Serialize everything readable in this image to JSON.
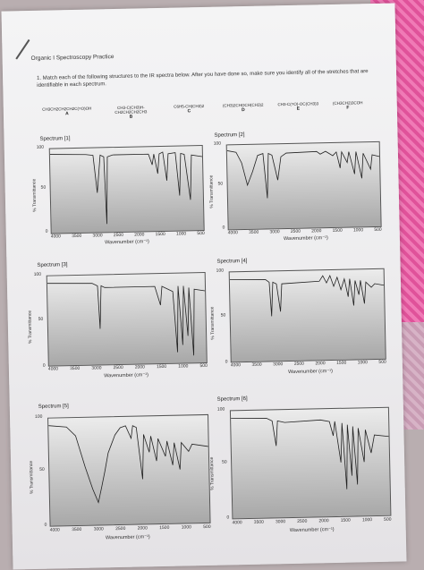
{
  "header": "Organic I Spectroscopy Practice",
  "question": "1. Match each of the following structures to the IR spectra below. After you have done so, make sure you identify all of the stretches that are identifiable in each spectrum.",
  "structures": [
    {
      "formula": "CH3CH2CH2CH2C(=O)OH",
      "label": "A"
    },
    {
      "formula": "CH3-C(CH3)H-CH2CH2CH2CH3",
      "label": "B"
    },
    {
      "formula": "C6H5-CH(CH3)2",
      "label": "C"
    },
    {
      "formula": "(CH3)2CHOCH(CH3)2",
      "label": "D"
    },
    {
      "formula": "CH3-C(=O)-OC(CH3)3",
      "label": "E"
    },
    {
      "formula": "(CH3CH2)3COH",
      "label": "F"
    }
  ],
  "axes": {
    "ylabel": "% Transmittance",
    "xlabel": "Wavenumber (cm⁻¹)",
    "yticks": [
      "100",
      "50",
      "0"
    ],
    "xticks": [
      "4000",
      "3500",
      "3000",
      "2500",
      "2000",
      "1500",
      "1000",
      "500"
    ]
  },
  "spectra": [
    {
      "title": "Spectrum [1]"
    },
    {
      "title": "Spectrum [2]"
    },
    {
      "title": "Spectrum [3]"
    },
    {
      "title": "Spectrum [4]"
    },
    {
      "title": "Spectrum [5]"
    },
    {
      "title": "Spectrum [6]"
    }
  ],
  "colors": {
    "paper": "#efeef0",
    "plot_top": "#ececec",
    "plot_bottom": "#a8a8a8",
    "trace": "#222222"
  }
}
